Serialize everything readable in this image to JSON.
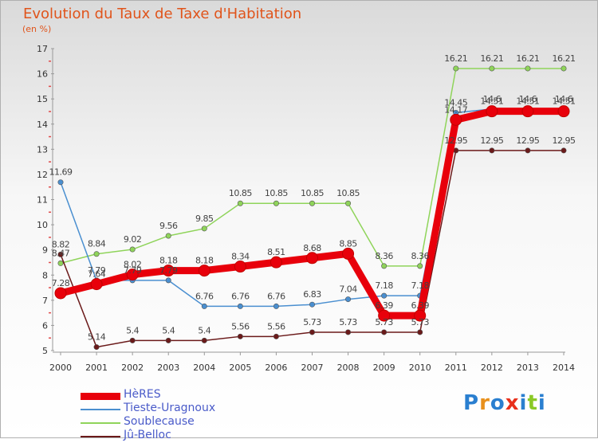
{
  "title": "Evolution du Taux de Taxe d'Habitation",
  "unit": "(en %)",
  "logo": {
    "text": "Proxiti",
    "colors": [
      "#2a7fd0",
      "#e8901c",
      "#2a7fd0",
      "#e8301c",
      "#2a7fd0",
      "#8ac926",
      "#2a7fd0"
    ]
  },
  "chart_data": {
    "type": "line",
    "title": "Evolution du Taux de Taxe d'Habitation",
    "ylabel": "(en %)",
    "xlabel": "",
    "ylim": [
      5,
      17
    ],
    "yticks": [
      5,
      6,
      7,
      8,
      9,
      10,
      11,
      12,
      13,
      14,
      15,
      16,
      17
    ],
    "x": [
      "2000",
      "2001",
      "2002",
      "2003",
      "2004",
      "2005",
      "2006",
      "2007",
      "2008",
      "2009",
      "2010",
      "2011",
      "2012",
      "2013",
      "2014"
    ],
    "grid": false,
    "legend_position": "bottom-left",
    "series": [
      {
        "name": "HèRES",
        "color": "#e8000b",
        "values": [
          7.28,
          7.64,
          8.02,
          8.18,
          8.18,
          8.34,
          8.51,
          8.68,
          8.85,
          6.39,
          6.39,
          14.17,
          14.51,
          14.51,
          14.51
        ],
        "labels": [
          "7.28",
          "7.64",
          "8.02",
          "8.18",
          "8.18",
          "8.34",
          "8.51",
          "8.68",
          "8.85",
          "6.39",
          "6.39",
          "14.17",
          "14.51",
          "14.51",
          "14.51"
        ]
      },
      {
        "name": "Tieste-Uragnoux",
        "color": "#4a8fd0",
        "values": [
          11.69,
          7.79,
          7.79,
          7.79,
          6.76,
          6.76,
          6.76,
          6.83,
          7.04,
          7.18,
          7.18,
          14.45,
          14.6,
          14.6,
          14.6
        ],
        "labels": [
          "11.69",
          "7.79",
          "7.79",
          "7.79",
          "6.76",
          "6.76",
          "6.76",
          "6.83",
          "7.04",
          "7.18",
          "7.18",
          "14.45",
          "14.6",
          "14.6",
          "14.6"
        ]
      },
      {
        "name": "Soublecause",
        "color": "#8fd45a",
        "values": [
          8.47,
          8.84,
          9.02,
          9.56,
          9.85,
          10.85,
          10.85,
          10.85,
          10.85,
          8.36,
          8.36,
          16.21,
          16.21,
          16.21,
          16.21
        ],
        "labels": [
          "8.47",
          "8.84",
          "9.02",
          "9.56",
          "9.85",
          "10.85",
          "10.85",
          "10.85",
          "10.85",
          "8.36",
          "8.36",
          "16.21",
          "16.21",
          "16.21",
          "16.21"
        ]
      },
      {
        "name": "Jû-Belloc",
        "color": "#6b1a1a",
        "values": [
          8.82,
          5.14,
          5.4,
          5.4,
          5.4,
          5.56,
          5.56,
          5.73,
          5.73,
          5.73,
          5.73,
          12.95,
          12.95,
          12.95,
          12.95
        ],
        "labels": [
          "8.82",
          "5.14",
          "5.4",
          "5.4",
          "5.4",
          "5.56",
          "5.56",
          "5.73",
          "5.73",
          "5.73",
          "5.73",
          "12.95",
          "12.95",
          "12.95",
          "12.95"
        ]
      }
    ]
  }
}
